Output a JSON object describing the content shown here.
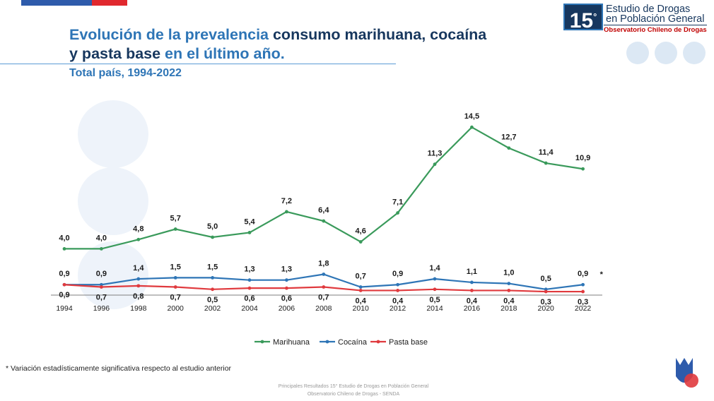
{
  "slide": {
    "title_part1": "Evolución de la prevalencia",
    "title_part2": " consumo marihuana, cocaína",
    "title_part3": "y pasta base",
    "title_part4": " en el último año.",
    "subtitle": "Total país, 1994-2022",
    "footnote": "* Variación estadísticamente significativa respecto al estudio anterior",
    "footer_line1": "Principales Resultados 15° Estudio de Drogas en Población General",
    "footer_line2": "Observatorio Chileno de Drogas - SENDA"
  },
  "logo": {
    "number": "15",
    "degree": "°",
    "line1": "Estudio de Drogas",
    "line2": "en Población General",
    "line3": "Observatorio Chileno de Drogas"
  },
  "colors": {
    "flag_blue": "#2e5bab",
    "flag_red": "#e0282e"
  },
  "chart_data": {
    "type": "line",
    "title": "",
    "xlabel": "",
    "ylabel": "",
    "x": [
      "1994",
      "1996",
      "1998",
      "2000",
      "2002",
      "2004",
      "2006",
      "2008",
      "2010",
      "2012",
      "2014",
      "2016",
      "2018",
      "2020",
      "2022"
    ],
    "ylim": [
      0,
      15
    ],
    "grid": false,
    "legend": "bottom",
    "series": [
      {
        "name": "Marihuana",
        "color": "#3a9a5b",
        "values": [
          4.0,
          4.0,
          4.8,
          5.7,
          5.0,
          5.4,
          7.2,
          6.4,
          4.6,
          7.1,
          11.3,
          14.5,
          12.7,
          11.4,
          10.9
        ],
        "labels": [
          "4,0",
          "4,0",
          "4,8",
          "5,7",
          "5,0",
          "5,4",
          "7,2",
          "6,4",
          "4,6",
          "7,1",
          "11,3",
          "14,5",
          "12,7",
          "11,4",
          "10,9"
        ]
      },
      {
        "name": "Cocaína",
        "color": "#2e75b6",
        "values": [
          0.9,
          0.9,
          1.4,
          1.5,
          1.5,
          1.3,
          1.3,
          1.8,
          0.7,
          0.9,
          1.4,
          1.1,
          1.0,
          0.5,
          0.9
        ],
        "labels": [
          "0,9",
          "0,9",
          "1,4",
          "1,5",
          "1,5",
          "1,3",
          "1,3",
          "1,8",
          "0,7",
          "0,9",
          "1,4",
          "1,1",
          "1,0",
          "0,5",
          "0,9"
        ]
      },
      {
        "name": "Pasta base",
        "color": "#e03a3e",
        "values": [
          0.9,
          0.7,
          0.8,
          0.7,
          0.5,
          0.6,
          0.6,
          0.7,
          0.4,
          0.4,
          0.5,
          0.4,
          0.4,
          0.3,
          0.3
        ],
        "labels": [
          "0,9",
          "0,7",
          "0,8",
          "0,7",
          "0,5",
          "0,6",
          "0,6",
          "0,7",
          "0,4",
          "0,4",
          "0,5",
          "0,4",
          "0,4",
          "0,3",
          "0,3"
        ]
      }
    ],
    "annotations": [
      {
        "x": "2022",
        "text": "*"
      }
    ]
  }
}
